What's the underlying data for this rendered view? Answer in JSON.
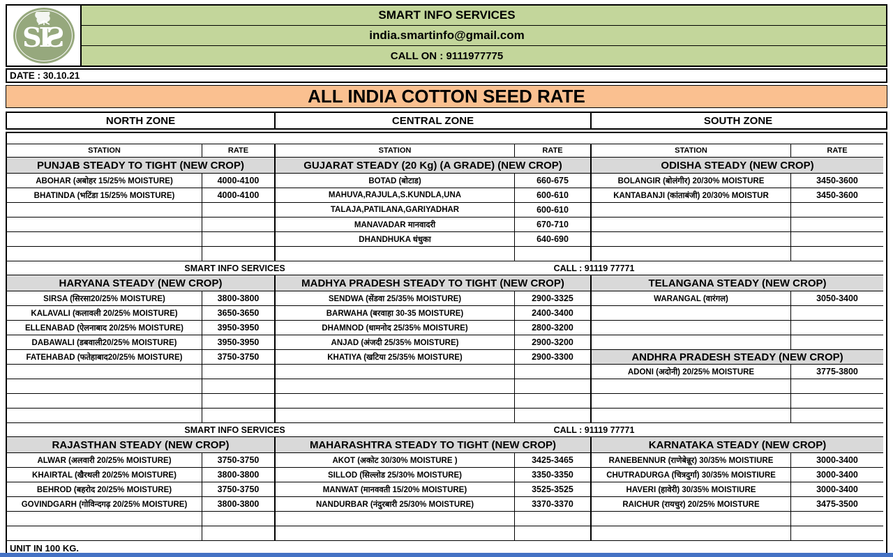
{
  "colors": {
    "green_banner": "#c3d69b",
    "title_bg": "#fac090",
    "section_bg": "#d9d9d9",
    "bottom_bar": "#4472c4",
    "logo_green": "#96a87d"
  },
  "header": {
    "company": "SMART INFO SERVICES",
    "email": "india.smartinfo@gmail.com",
    "phone": "CALL ON : 9111977775",
    "logo_monogram": "SIS",
    "logo_icon": "cotton-boll-icon"
  },
  "date_line": "DATE : 30.10.21",
  "title": "ALL INDIA COTTON SEED RATE",
  "grid": {
    "zones": [
      "NORTH ZONE",
      "CENTRAL ZONE",
      "SOUTH ZONE"
    ],
    "col_headers": [
      "STATION",
      "RATE",
      "STATION",
      "RATE",
      "STATION",
      "RATE"
    ],
    "separator": {
      "left": "SMART INFO SERVICES",
      "right": "CALL : 91119 77771"
    },
    "unit_note": "UNIT IN 100 KG.",
    "rows": [
      {
        "type": "blank"
      },
      {
        "type": "colheads"
      },
      {
        "type": "sec",
        "cells": [
          "PUNJAB STEADY TO TIGHT (NEW CROP)",
          "GUJARAT STEADY (20 Kg) (A GRADE)  (NEW CROP)",
          "ODISHA STEADY  (NEW CROP)"
        ]
      },
      {
        "type": "data",
        "cells": [
          {
            "s": "ABOHAR (अबोहर 15/25% MOISTURE)",
            "r": "4000-4100"
          },
          {
            "s": "BOTAD (बोटाड)",
            "r": "660-675"
          },
          {
            "s": "BOLANGIR (बोलंगीर) 20/30% MOISTURE",
            "r": "3450-3600"
          }
        ]
      },
      {
        "type": "data",
        "cells": [
          {
            "s": "BHATINDA (भटिंडा 15/25% MOISTURE)",
            "r": "4000-4100"
          },
          {
            "s": "MAHUVA,RAJULA,S.KUNDLA,UNA",
            "r": "600-610"
          },
          {
            "s": "KANTABANJI (कांताबंजी) 20/30% MOISTUR",
            "r": "3450-3600"
          }
        ]
      },
      {
        "type": "data",
        "cells": [
          {},
          {
            "s": "TALAJA,PATILANA,GARIYADHAR",
            "r": "600-610"
          },
          {}
        ]
      },
      {
        "type": "data",
        "cells": [
          {},
          {
            "s": "MANAVADAR मानवादरी",
            "r": "670-710"
          },
          {}
        ]
      },
      {
        "type": "data",
        "cells": [
          {},
          {
            "s": "DHANDHUKA धंधुका",
            "r": "640-690"
          },
          {}
        ]
      },
      {
        "type": "data",
        "cells": [
          {},
          {},
          {}
        ]
      },
      {
        "type": "sep"
      },
      {
        "type": "sec",
        "cells": [
          "HARYANA STEADY   (NEW CROP)",
          "MADHYA PRADESH  STEADY TO TIGHT (NEW CROP)",
          "TELANGANA STEADY (NEW CROP)"
        ]
      },
      {
        "type": "data",
        "cells": [
          {
            "s": "SIRSA (सिरसा20/25% MOISTURE)",
            "r": "3800-3800"
          },
          {
            "s": "SENDWA  (सेंडवा 25/35%  MOISTURE)",
            "r": "2900-3325"
          },
          {
            "s": "WARANGAL (वारंगल)",
            "r": "3050-3400"
          }
        ]
      },
      {
        "type": "data",
        "cells": [
          {
            "s": "KALAVALI (कलावली 20/25% MOISTURE)",
            "r": "3650-3650"
          },
          {
            "s": "BARWAHA (बरवाहा 30-35  MOISTURE)",
            "r": "2400-3400"
          },
          {}
        ]
      },
      {
        "type": "data",
        "cells": [
          {
            "s": "ELLENABAD (ऐलनाबाद 20/25% MOISTURE)",
            "r": "3950-3950"
          },
          {
            "s": "DHAMNOD (धामनोद  25/35%  MOISTURE)",
            "r": "2800-3200"
          },
          {}
        ]
      },
      {
        "type": "data",
        "cells": [
          {
            "s": "DABAWALI (डबवाली20/25% MOISTURE)",
            "r": "3950-3950"
          },
          {
            "s": "ANJAD  (अंजदी 25/35%  MOISTURE)",
            "r": "2900-3200"
          },
          {}
        ]
      },
      {
        "type": "data",
        "cells": [
          {
            "s": "FATEHABAD (फतेहाबाद20/25% MOISTURE)",
            "r": "3750-3750"
          },
          {
            "s": "KHATIYA (खटिया 25/35%  MOISTURE)",
            "r": "2900-3300"
          },
          {
            "sec": "ANDHRA PRADESH STEADY  (NEW CROP)"
          }
        ]
      },
      {
        "type": "data",
        "cells": [
          {},
          {},
          {
            "s": "ADONI (अदोनी) 20/25% MOISTURE",
            "r": "3775-3800"
          }
        ]
      },
      {
        "type": "data",
        "cells": [
          {},
          {},
          {}
        ]
      },
      {
        "type": "data",
        "cells": [
          {},
          {},
          {}
        ]
      },
      {
        "type": "data",
        "cells": [
          {},
          {},
          {}
        ]
      },
      {
        "type": "sep"
      },
      {
        "type": "sec",
        "cells": [
          "RAJASTHAN  STEADY (NEW CROP)",
          "MAHARASHTRA  STEADY TO TIGHT (NEW CROP)",
          "KARNATAKA STEADY  (NEW CROP)"
        ]
      },
      {
        "type": "data",
        "cells": [
          {
            "s": "ALWAR (अलवारी 20/25% MOISTURE)",
            "r": "3750-3750"
          },
          {
            "s": "AKOT (अकोट 30/30% MOISTURE )",
            "r": "3425-3465"
          },
          {
            "s": "RANEBENNUR (राणेबेन्नूर) 30/35% MOISTIURE",
            "r": "3000-3400"
          }
        ]
      },
      {
        "type": "data",
        "cells": [
          {
            "s": "KHAIRTAL (खैरथली 20/25% MOISTURE)",
            "r": "3800-3800"
          },
          {
            "s": "SILLOD (सिल्लोड 25/30% MOISTURE)",
            "r": "3350-3350"
          },
          {
            "s": "CHUTRADURGA (चित्रदुर्गा) 30/35% MOISTIURE",
            "r": "3000-3400"
          }
        ]
      },
      {
        "type": "data",
        "cells": [
          {
            "s": "BEHROD (बहरोद 20/25% MOISTURE)",
            "r": "3750-3750"
          },
          {
            "s": "MANWAT (मानववती 15/20% MOISTURE)",
            "r": "3525-3525"
          },
          {
            "s": "HAVERI (हावेरी) 30/35% MOISTIURE",
            "r": "3000-3400"
          }
        ]
      },
      {
        "type": "data",
        "cells": [
          {
            "s": "GOVINDGARH (गोविन्दगढ़ 20/25% MOISTURE)",
            "r": "3800-3800"
          },
          {
            "s": "NANDURBAR (नंदुरबारी 25/30% MOISTURE)",
            "r": "3370-3370"
          },
          {
            "s": "RAICHUR (रायचुर) 20/25% MOISTURE",
            "r": "3475-3500"
          }
        ]
      },
      {
        "type": "data",
        "cells": [
          {},
          {},
          {}
        ]
      },
      {
        "type": "data",
        "cells": [
          {},
          {},
          {}
        ]
      },
      {
        "type": "unit"
      }
    ]
  }
}
